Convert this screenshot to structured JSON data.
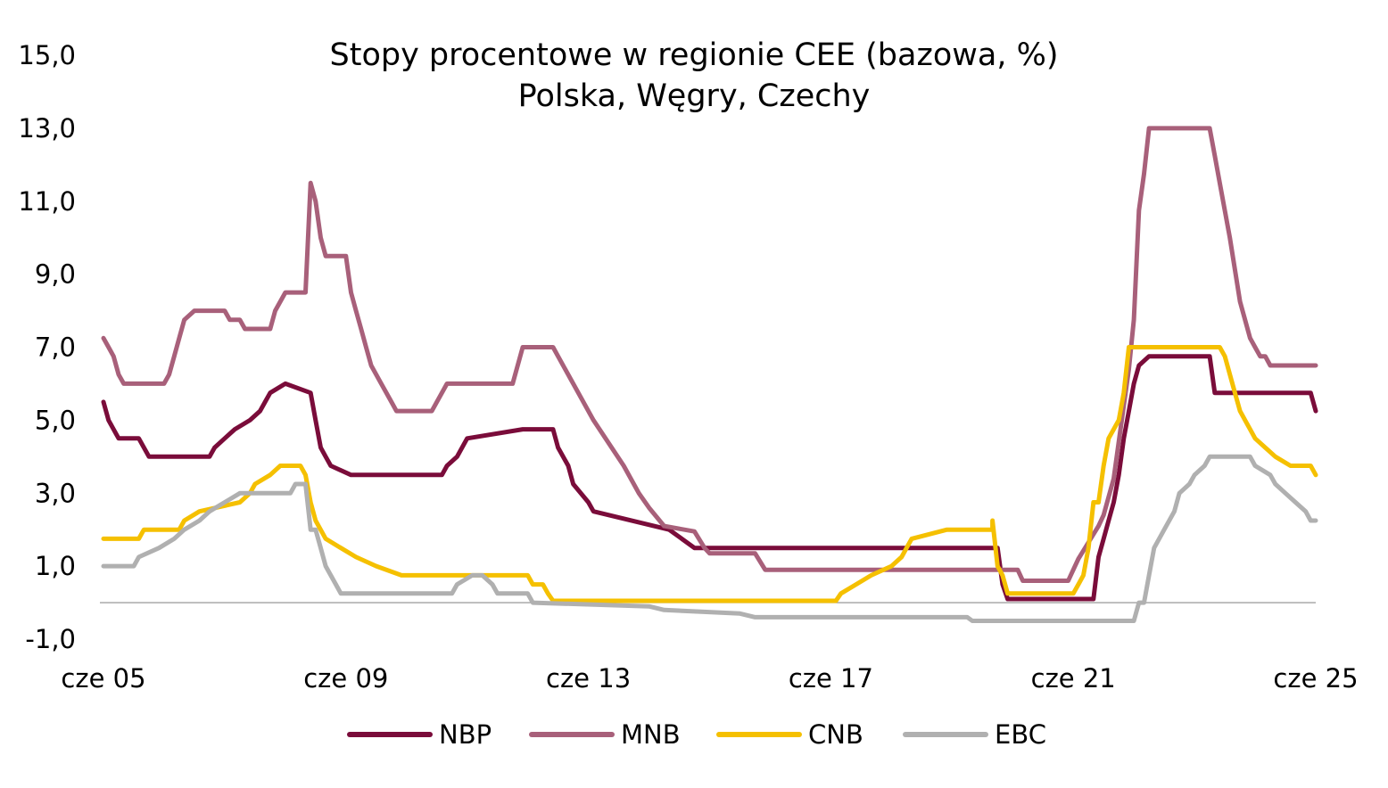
{
  "chart_data": {
    "type": "line",
    "title": "Stopy procentowe w regionie CEE (bazowa, %)",
    "subtitle": "Polska, Węgry, Czechy",
    "xlabel": "",
    "ylabel": "",
    "x_range": [
      "2005-06",
      "2025-06"
    ],
    "ylim": [
      -1.0,
      15.0
    ],
    "y_ticks": [
      "-1,0",
      "1,0",
      "3,0",
      "5,0",
      "7,0",
      "9,0",
      "11,0",
      "13,0",
      "15,0"
    ],
    "x_ticks": [
      {
        "date": "2005-06",
        "label": "cze 05"
      },
      {
        "date": "2009-06",
        "label": "cze 09"
      },
      {
        "date": "2013-06",
        "label": "cze 13"
      },
      {
        "date": "2017-06",
        "label": "cze 17"
      },
      {
        "date": "2021-06",
        "label": "cze 21"
      },
      {
        "date": "2025-06",
        "label": "cze 25"
      }
    ],
    "grid": false,
    "legend_position": "bottom",
    "series": [
      {
        "name": "NBP",
        "color": "#7a0c3a",
        "points": [
          [
            "2005-06",
            5.5
          ],
          [
            "2005-07",
            5.0
          ],
          [
            "2005-08",
            4.75
          ],
          [
            "2005-09",
            4.5
          ],
          [
            "2006-01",
            4.5
          ],
          [
            "2006-03",
            4.0
          ],
          [
            "2007-03",
            4.0
          ],
          [
            "2007-04",
            4.25
          ],
          [
            "2007-06",
            4.5
          ],
          [
            "2007-08",
            4.75
          ],
          [
            "2007-11",
            5.0
          ],
          [
            "2008-01",
            5.25
          ],
          [
            "2008-02",
            5.5
          ],
          [
            "2008-03",
            5.75
          ],
          [
            "2008-06",
            6.0
          ],
          [
            "2008-11",
            5.75
          ],
          [
            "2008-12",
            5.0
          ],
          [
            "2009-01",
            4.25
          ],
          [
            "2009-02",
            4.0
          ],
          [
            "2009-03",
            3.75
          ],
          [
            "2009-07",
            3.5
          ],
          [
            "2011-01",
            3.5
          ],
          [
            "2011-02",
            3.75
          ],
          [
            "2011-04",
            4.0
          ],
          [
            "2011-06",
            4.5
          ],
          [
            "2012-05",
            4.75
          ],
          [
            "2012-11",
            4.75
          ],
          [
            "2012-12",
            4.25
          ],
          [
            "2013-02",
            3.75
          ],
          [
            "2013-03",
            3.25
          ],
          [
            "2013-06",
            2.75
          ],
          [
            "2013-07",
            2.5
          ],
          [
            "2014-10",
            2.0
          ],
          [
            "2015-03",
            1.5
          ],
          [
            "2020-03",
            1.5
          ],
          [
            "2020-04",
            0.5
          ],
          [
            "2020-05",
            0.1
          ],
          [
            "2021-10",
            0.1
          ],
          [
            "2021-11",
            1.25
          ],
          [
            "2021-12",
            1.75
          ],
          [
            "2022-01",
            2.25
          ],
          [
            "2022-02",
            2.75
          ],
          [
            "2022-03",
            3.5
          ],
          [
            "2022-04",
            4.5
          ],
          [
            "2022-05",
            5.25
          ],
          [
            "2022-06",
            6.0
          ],
          [
            "2022-07",
            6.5
          ],
          [
            "2022-09",
            6.75
          ],
          [
            "2023-09",
            6.75
          ],
          [
            "2023-10",
            5.75
          ],
          [
            "2025-05",
            5.75
          ],
          [
            "2025-06",
            5.25
          ]
        ]
      },
      {
        "name": "MNB",
        "color": "#a8607a",
        "points": [
          [
            "2005-06",
            7.25
          ],
          [
            "2005-07",
            7.0
          ],
          [
            "2005-08",
            6.75
          ],
          [
            "2005-09",
            6.25
          ],
          [
            "2005-10",
            6.0
          ],
          [
            "2006-06",
            6.0
          ],
          [
            "2006-07",
            6.25
          ],
          [
            "2006-08",
            6.75
          ],
          [
            "2006-09",
            7.25
          ],
          [
            "2006-10",
            7.75
          ],
          [
            "2006-12",
            8.0
          ],
          [
            "2007-06",
            8.0
          ],
          [
            "2007-07",
            7.75
          ],
          [
            "2007-09",
            7.75
          ],
          [
            "2007-10",
            7.5
          ],
          [
            "2008-03",
            7.5
          ],
          [
            "2008-04",
            8.0
          ],
          [
            "2008-06",
            8.5
          ],
          [
            "2008-10",
            8.5
          ],
          [
            "2008-11",
            11.5
          ],
          [
            "2008-12",
            11.0
          ],
          [
            "2009-01",
            10.0
          ],
          [
            "2009-02",
            9.5
          ],
          [
            "2009-06",
            9.5
          ],
          [
            "2009-07",
            8.5
          ],
          [
            "2009-08",
            8.0
          ],
          [
            "2009-09",
            7.5
          ],
          [
            "2009-10",
            7.0
          ],
          [
            "2009-11",
            6.5
          ],
          [
            "2010-01",
            6.0
          ],
          [
            "2010-03",
            5.5
          ],
          [
            "2010-04",
            5.25
          ],
          [
            "2010-11",
            5.25
          ],
          [
            "2010-12",
            5.5
          ],
          [
            "2011-02",
            6.0
          ],
          [
            "2012-03",
            6.0
          ],
          [
            "2012-05",
            7.0
          ],
          [
            "2012-11",
            7.0
          ],
          [
            "2012-12",
            6.75
          ],
          [
            "2013-04",
            5.75
          ],
          [
            "2013-07",
            5.0
          ],
          [
            "2014-01",
            3.75
          ],
          [
            "2014-04",
            3.0
          ],
          [
            "2014-06",
            2.6
          ],
          [
            "2014-09",
            2.1
          ],
          [
            "2015-03",
            1.95
          ],
          [
            "2015-05",
            1.5
          ],
          [
            "2015-06",
            1.35
          ],
          [
            "2016-03",
            1.35
          ],
          [
            "2016-05",
            0.9
          ],
          [
            "2020-07",
            0.9
          ],
          [
            "2020-08",
            0.6
          ],
          [
            "2021-05",
            0.6
          ],
          [
            "2021-07",
            1.2
          ],
          [
            "2021-09",
            1.65
          ],
          [
            "2021-11",
            2.1
          ],
          [
            "2021-12",
            2.4
          ],
          [
            "2022-02",
            3.4
          ],
          [
            "2022-04",
            5.4
          ],
          [
            "2022-05",
            6.4
          ],
          [
            "2022-06",
            7.75
          ],
          [
            "2022-07",
            10.75
          ],
          [
            "2022-08",
            11.75
          ],
          [
            "2022-09",
            13.0
          ],
          [
            "2023-09",
            13.0
          ],
          [
            "2023-10",
            12.25
          ],
          [
            "2023-11",
            11.5
          ],
          [
            "2024-01",
            10.0
          ],
          [
            "2024-03",
            8.25
          ],
          [
            "2024-05",
            7.25
          ],
          [
            "2024-06",
            7.0
          ],
          [
            "2024-07",
            6.75
          ],
          [
            "2024-08",
            6.75
          ],
          [
            "2024-09",
            6.5
          ],
          [
            "2025-06",
            6.5
          ]
        ]
      },
      {
        "name": "CNB",
        "color": "#f5c000",
        "points": [
          [
            "2005-06",
            1.75
          ],
          [
            "2006-01",
            1.75
          ],
          [
            "2006-02",
            2.0
          ],
          [
            "2006-09",
            2.0
          ],
          [
            "2006-10",
            2.25
          ],
          [
            "2007-01",
            2.5
          ],
          [
            "2007-09",
            2.75
          ],
          [
            "2007-11",
            3.0
          ],
          [
            "2007-12",
            3.25
          ],
          [
            "2008-03",
            3.5
          ],
          [
            "2008-05",
            3.75
          ],
          [
            "2008-09",
            3.75
          ],
          [
            "2008-10",
            3.5
          ],
          [
            "2008-11",
            2.75
          ],
          [
            "2008-12",
            2.25
          ],
          [
            "2009-02",
            1.75
          ],
          [
            "2009-05",
            1.5
          ],
          [
            "2009-08",
            1.25
          ],
          [
            "2009-12",
            1.0
          ],
          [
            "2010-05",
            0.75
          ],
          [
            "2012-06",
            0.75
          ],
          [
            "2012-07",
            0.5
          ],
          [
            "2012-09",
            0.5
          ],
          [
            "2012-10",
            0.25
          ],
          [
            "2012-11",
            0.05
          ],
          [
            "2017-07",
            0.05
          ],
          [
            "2017-08",
            0.25
          ],
          [
            "2017-11",
            0.5
          ],
          [
            "2018-02",
            0.75
          ],
          [
            "2018-06",
            1.0
          ],
          [
            "2018-08",
            1.25
          ],
          [
            "2018-09",
            1.5
          ],
          [
            "2018-10",
            1.75
          ],
          [
            "2019-05",
            2.0
          ],
          [
            "2020-02",
            2.0
          ],
          [
            "2020-02",
            2.25
          ],
          [
            "2020-03",
            1.0
          ],
          [
            "2020-04",
            0.75
          ],
          [
            "2020-05",
            0.25
          ],
          [
            "2021-06",
            0.25
          ],
          [
            "2021-07",
            0.5
          ],
          [
            "2021-08",
            0.75
          ],
          [
            "2021-09",
            1.5
          ],
          [
            "2021-10",
            2.75
          ],
          [
            "2021-11",
            2.75
          ],
          [
            "2021-12",
            3.75
          ],
          [
            "2022-01",
            4.5
          ],
          [
            "2022-03",
            5.0
          ],
          [
            "2022-04",
            5.75
          ],
          [
            "2022-05",
            7.0
          ],
          [
            "2023-11",
            7.0
          ],
          [
            "2023-12",
            6.75
          ],
          [
            "2024-02",
            5.75
          ],
          [
            "2024-03",
            5.25
          ],
          [
            "2024-05",
            4.75
          ],
          [
            "2024-06",
            4.5
          ],
          [
            "2024-08",
            4.25
          ],
          [
            "2024-10",
            4.0
          ],
          [
            "2025-01",
            3.75
          ],
          [
            "2025-05",
            3.75
          ],
          [
            "2025-06",
            3.5
          ]
        ]
      },
      {
        "name": "EBC",
        "color": "#b0b0b0",
        "points": [
          [
            "2005-06",
            1.0
          ],
          [
            "2005-12",
            1.0
          ],
          [
            "2006-01",
            1.25
          ],
          [
            "2006-05",
            1.5
          ],
          [
            "2006-08",
            1.75
          ],
          [
            "2006-10",
            2.0
          ],
          [
            "2007-01",
            2.25
          ],
          [
            "2007-03",
            2.5
          ],
          [
            "2007-06",
            2.75
          ],
          [
            "2007-09",
            3.0
          ],
          [
            "2008-07",
            3.0
          ],
          [
            "2008-08",
            3.25
          ],
          [
            "2008-10",
            3.25
          ],
          [
            "2008-11",
            2.0
          ],
          [
            "2008-12",
            2.0
          ],
          [
            "2009-01",
            1.5
          ],
          [
            "2009-02",
            1.0
          ],
          [
            "2009-04",
            0.5
          ],
          [
            "2009-05",
            0.25
          ],
          [
            "2011-03",
            0.25
          ],
          [
            "2011-04",
            0.5
          ],
          [
            "2011-07",
            0.75
          ],
          [
            "2011-09",
            0.75
          ],
          [
            "2011-11",
            0.5
          ],
          [
            "2011-12",
            0.25
          ],
          [
            "2012-06",
            0.25
          ],
          [
            "2012-07",
            0.0
          ],
          [
            "2014-06",
            -0.1
          ],
          [
            "2014-09",
            -0.2
          ],
          [
            "2015-12",
            -0.3
          ],
          [
            "2016-03",
            -0.4
          ],
          [
            "2019-09",
            -0.4
          ],
          [
            "2019-10",
            -0.5
          ],
          [
            "2022-06",
            -0.5
          ],
          [
            "2022-07",
            0.0
          ],
          [
            "2022-08",
            0.0
          ],
          [
            "2022-09",
            0.75
          ],
          [
            "2022-10",
            1.5
          ],
          [
            "2022-12",
            2.0
          ],
          [
            "2023-02",
            2.5
          ],
          [
            "2023-03",
            3.0
          ],
          [
            "2023-05",
            3.25
          ],
          [
            "2023-06",
            3.5
          ],
          [
            "2023-08",
            3.75
          ],
          [
            "2023-09",
            4.0
          ],
          [
            "2024-05",
            4.0
          ],
          [
            "2024-06",
            3.75
          ],
          [
            "2024-09",
            3.5
          ],
          [
            "2024-10",
            3.25
          ],
          [
            "2024-12",
            3.0
          ],
          [
            "2025-02",
            2.75
          ],
          [
            "2025-04",
            2.5
          ],
          [
            "2025-05",
            2.25
          ],
          [
            "2025-06",
            2.25
          ]
        ]
      }
    ]
  }
}
